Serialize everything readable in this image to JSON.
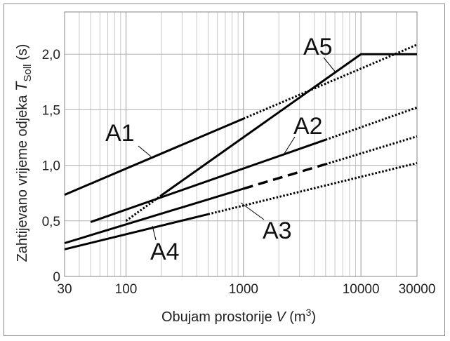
{
  "chart_data": {
    "type": "line",
    "title": "",
    "xlabel": "Obujam prostorije",
    "xlabel_var": "V",
    "xlabel_unit_open": "(m",
    "xlabel_unit_exp": "3",
    "xlabel_unit_close": ")",
    "ylabel": "Zahtijevano vrijeme odjeka",
    "ylabel_var": "T",
    "ylabel_sub": "Soll",
    "ylabel_unit": "(s)",
    "xscale": "log",
    "xlim": [
      30,
      30000
    ],
    "ylim": [
      0,
      2.38
    ],
    "grid": true,
    "xticks": [
      {
        "v": 30,
        "label": "30"
      },
      {
        "v": 100,
        "label": "100"
      },
      {
        "v": 1000,
        "label": "1000"
      },
      {
        "v": 10000,
        "label": "10000"
      },
      {
        "v": 30000,
        "label": "30000"
      }
    ],
    "yticks": [
      {
        "v": 0,
        "label": "0"
      },
      {
        "v": 0.5,
        "label": "0,5"
      },
      {
        "v": 1.0,
        "label": "1,0"
      },
      {
        "v": 1.5,
        "label": "1,5"
      },
      {
        "v": 2.0,
        "label": "2,0"
      }
    ],
    "series": [
      {
        "name": "A1",
        "segments": [
          {
            "style": "solid",
            "points": [
              [
                30,
                0.735
              ],
              [
                1000,
                1.42
              ]
            ]
          },
          {
            "style": "dotted",
            "points": [
              [
                1000,
                1.42
              ],
              [
                30000,
                2.085
              ]
            ]
          }
        ]
      },
      {
        "name": "A2",
        "segments": [
          {
            "style": "solid",
            "points": [
              [
                50,
                0.49
              ],
              [
                5000,
                1.23
              ]
            ]
          },
          {
            "style": "dotted",
            "points": [
              [
                5000,
                1.23
              ],
              [
                30000,
                1.52
              ]
            ]
          }
        ]
      },
      {
        "name": "A3",
        "segments": [
          {
            "style": "solid",
            "points": [
              [
                30,
                0.3
              ],
              [
                1000,
                0.79
              ]
            ]
          },
          {
            "style": "dashed",
            "points": [
              [
                1000,
                0.79
              ],
              [
                5000,
                1.01
              ]
            ]
          },
          {
            "style": "dotted",
            "points": [
              [
                5000,
                1.01
              ],
              [
                30000,
                1.26
              ]
            ]
          }
        ]
      },
      {
        "name": "A4",
        "segments": [
          {
            "style": "solid",
            "points": [
              [
                30,
                0.244
              ],
              [
                500,
                0.56
              ]
            ]
          },
          {
            "style": "dotted",
            "points": [
              [
                500,
                0.56
              ],
              [
                30000,
                1.02
              ]
            ]
          }
        ]
      },
      {
        "name": "A5",
        "segments": [
          {
            "style": "dotted",
            "points": [
              [
                100,
                0.5
              ],
              [
                200,
                0.73
              ]
            ]
          },
          {
            "style": "solid",
            "points": [
              [
                200,
                0.73
              ],
              [
                10000,
                2.0
              ],
              [
                30000,
                2.0
              ]
            ]
          }
        ]
      }
    ]
  }
}
